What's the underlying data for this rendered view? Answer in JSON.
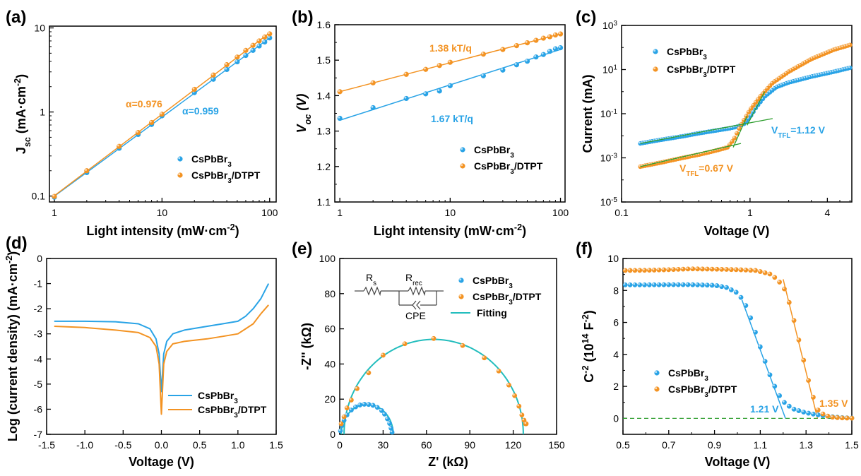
{
  "colors": {
    "blue": "#29A3E6",
    "orange": "#F39323",
    "teal": "#22BDBD",
    "green": "#2E9E2E"
  },
  "panels": {
    "a": {
      "label": "(a)",
      "chart_data": {
        "type": "scatter",
        "x_scale": "log",
        "y_scale": "log",
        "xlabel": "Light intensity (mW·cm⁻²)",
        "ylabel": "Jsc (mA·cm⁻²)",
        "xlim": [
          0.9,
          115
        ],
        "ylim": [
          0.085,
          10.5
        ],
        "x_ticks": [
          "1",
          "10",
          "100"
        ],
        "y_ticks": [
          "0.1",
          "1",
          "10"
        ],
        "legend_position": "bottom-right",
        "annotations": [
          "α=0.976",
          "α=0.959"
        ],
        "series": [
          {
            "name": "CsPbBr3",
            "color": "blue",
            "x": [
              1,
              2,
              4,
              6,
              8,
              10,
              20,
              30,
              40,
              50,
              60,
              70,
              80,
              90,
              100
            ],
            "y": [
              0.097,
              0.19,
              0.37,
              0.54,
              0.71,
              0.9,
              1.7,
              2.45,
              3.2,
              3.95,
              4.7,
              5.4,
              6.1,
              6.8,
              7.6
            ]
          },
          {
            "name": "CsPbBr3/DTPT",
            "color": "orange",
            "x": [
              1,
              2,
              4,
              6,
              8,
              10,
              20,
              30,
              40,
              50,
              60,
              70,
              80,
              90,
              100
            ],
            "y": [
              0.099,
              0.2,
              0.39,
              0.57,
              0.75,
              0.94,
              1.86,
              2.75,
              3.65,
              4.5,
              5.4,
              6.2,
              7.0,
              7.8,
              8.5
            ]
          }
        ]
      }
    },
    "b": {
      "label": "(b)",
      "chart_data": {
        "type": "scatter",
        "x_scale": "log",
        "y_scale": "linear",
        "xlabel": "Light intensity (mW·cm⁻²)",
        "ylabel": "Voc (V)",
        "xlim": [
          0.9,
          110
        ],
        "ylim": [
          1.1,
          1.6
        ],
        "x_ticks": [
          "1",
          "10",
          "100"
        ],
        "y_ticks": [
          "1.1",
          "1.2",
          "1.3",
          "1.4",
          "1.5",
          "1.6"
        ],
        "legend_position": "bottom-right",
        "annotations": [
          "1.38 kT/q",
          "1.67 kT/q"
        ],
        "series": [
          {
            "name": "CsPbBr3",
            "color": "blue",
            "x": [
              1,
              2,
              4,
              6,
              8,
              10,
              20,
              30,
              40,
              50,
              60,
              70,
              80,
              90,
              100
            ],
            "y": [
              1.336,
              1.366,
              1.392,
              1.405,
              1.413,
              1.428,
              1.456,
              1.472,
              1.487,
              1.497,
              1.509,
              1.516,
              1.525,
              1.532,
              1.535
            ]
          },
          {
            "name": "CsPbBr3/DTPT",
            "color": "orange",
            "x": [
              1,
              2,
              4,
              6,
              8,
              10,
              20,
              30,
              40,
              50,
              60,
              70,
              80,
              90,
              100
            ],
            "y": [
              1.411,
              1.436,
              1.46,
              1.474,
              1.485,
              1.494,
              1.517,
              1.53,
              1.541,
              1.549,
              1.556,
              1.562,
              1.566,
              1.571,
              1.574
            ]
          }
        ]
      }
    },
    "c": {
      "label": "(c)",
      "chart_data": {
        "type": "scatter",
        "x_scale": "log",
        "y_scale": "log",
        "xlabel": "Voltage (V)",
        "ylabel": "Current (mA)",
        "xlim": [
          0.1,
          6.2
        ],
        "ylim": [
          1e-05,
          1000
        ],
        "x_ticks": [
          "0.1",
          "1",
          "4"
        ],
        "y_ticks": [
          "10-5",
          "10-3",
          "10-1",
          "101",
          "103"
        ],
        "legend_position": "top-left",
        "annotations": [
          "VTFL=1.12 V",
          "VTFL=0.67 V"
        ],
        "series": [
          {
            "name": "CsPbBr3",
            "color": "blue",
            "x": [
              0.14,
              0.2,
              0.3,
              0.4,
              0.5,
              0.6,
              0.7,
              0.8,
              0.9,
              1.0,
              1.12,
              1.3,
              1.6,
              2.0,
              3.0,
              4.5,
              6.0
            ],
            "y": [
              0.0045,
              0.0065,
              0.0095,
              0.013,
              0.016,
              0.019,
              0.022,
              0.026,
              0.035,
              0.07,
              0.2,
              0.6,
              1.6,
              2.6,
              4.8,
              8.0,
              12.0
            ]
          },
          {
            "name": "CsPbBr3/DTPT",
            "color": "orange",
            "x": [
              0.14,
              0.2,
              0.3,
              0.4,
              0.5,
              0.6,
              0.67,
              0.75,
              0.85,
              1.0,
              1.2,
              1.5,
              2.0,
              3.0,
              4.5,
              6.0
            ],
            "y": [
              0.0004,
              0.0006,
              0.001,
              0.0014,
              0.0019,
              0.0025,
              0.003,
              0.007,
              0.03,
              0.15,
              0.6,
              2.5,
              8.0,
              30,
              80,
              130
            ]
          }
        ]
      }
    },
    "d": {
      "label": "(d)",
      "chart_data": {
        "type": "line",
        "xlabel": "Voltage (V)",
        "ylabel": "Log (current density) (mA·cm⁻²)",
        "xlim": [
          -1.5,
          1.5
        ],
        "ylim": [
          -7,
          0
        ],
        "x_ticks": [
          "-1.5",
          "-1.0",
          "-0.5",
          "0.0",
          "0.5",
          "1.0",
          "1.5"
        ],
        "y_ticks": [
          "-7",
          "-6",
          "-5",
          "-4",
          "-3",
          "-2",
          "-1",
          "0"
        ],
        "legend_position": "bottom-right",
        "series": [
          {
            "name": "CsPbBr3",
            "color": "blue",
            "x": [
              -1.4,
              -1.0,
              -0.6,
              -0.3,
              -0.15,
              -0.07,
              -0.03,
              0.0,
              0.03,
              0.07,
              0.15,
              0.3,
              0.6,
              0.8,
              1.0,
              1.1,
              1.2,
              1.3,
              1.4
            ],
            "y": [
              -2.5,
              -2.5,
              -2.52,
              -2.6,
              -2.8,
              -3.2,
              -3.8,
              -5.3,
              -3.8,
              -3.3,
              -3.0,
              -2.85,
              -2.7,
              -2.6,
              -2.5,
              -2.3,
              -2.0,
              -1.6,
              -1.0
            ]
          },
          {
            "name": "CsPbBr3/DTPT",
            "color": "orange",
            "x": [
              -1.4,
              -1.0,
              -0.6,
              -0.3,
              -0.15,
              -0.07,
              -0.03,
              0.0,
              0.03,
              0.07,
              0.15,
              0.3,
              0.6,
              0.8,
              1.0,
              1.1,
              1.2,
              1.3,
              1.4
            ],
            "y": [
              -2.7,
              -2.75,
              -2.85,
              -2.95,
              -3.15,
              -3.5,
              -4.2,
              -6.2,
              -4.2,
              -3.7,
              -3.4,
              -3.3,
              -3.2,
              -3.1,
              -3.0,
              -2.8,
              -2.6,
              -2.2,
              -1.85
            ]
          }
        ]
      }
    },
    "e": {
      "label": "(e)",
      "chart_data": {
        "type": "scatter",
        "xlabel": "Z' (kΩ)",
        "ylabel": "-Z'' (kΩ)",
        "xlim": [
          0,
          150
        ],
        "ylim": [
          0,
          100
        ],
        "x_ticks": [
          "0",
          "30",
          "60",
          "90",
          "120",
          "150"
        ],
        "y_ticks": [
          "0",
          "20",
          "40",
          "60",
          "80",
          "100"
        ],
        "legend_position": "top-right",
        "legend_entries": [
          "CsPbBr3",
          "CsPbBr3/DTPT",
          "Fitting"
        ],
        "circuit_labels": {
          "rs": "Rs",
          "rrec": "Rrec",
          "cpe": "CPE"
        },
        "fit_arcs": [
          {
            "name": "CsPbBr3",
            "center_x": 19,
            "radius": 18,
            "z_max": 17
          },
          {
            "name": "CsPbBr3/DTPT",
            "center_x": 65,
            "radius": 62,
            "z_max": 54
          }
        ],
        "series": [
          {
            "name": "CsPbBr3",
            "color": "blue",
            "x": [
              0.5,
              1.5,
              3,
              5,
              8,
              11,
              14,
              17,
              20,
              23,
              26,
              29,
              31,
              33,
              34.5,
              35.5,
              36.2
            ],
            "y": [
              2,
              5,
              8,
              11,
              13.8,
              15.6,
              16.7,
              17.1,
              17.0,
              16.5,
              15.3,
              13.5,
              11.5,
              8.8,
              6.2,
              3.5,
              1.2
            ]
          },
          {
            "name": "CsPbBr3/DTPT",
            "color": "orange",
            "x": [
              1,
              3,
              5,
              8,
              12,
              20,
              30,
              45,
              65,
              85,
              100,
              110,
              117,
              121,
              124,
              126,
              127.5,
              128.5,
              129
            ],
            "y": [
              6,
              10,
              15,
              19.5,
              26,
              35,
              45,
              51.5,
              54.5,
              50.5,
              43.5,
              36,
              28,
              22,
              16,
              11,
              8,
              6,
              6
            ]
          }
        ]
      }
    },
    "f": {
      "label": "(f)",
      "chart_data": {
        "type": "scatter",
        "xlabel": "Voltage (V)",
        "ylabel": "C-2 (1014 F-2)",
        "xlim": [
          0.5,
          1.5
        ],
        "ylim": [
          -1,
          10
        ],
        "x_ticks": [
          "0.5",
          "0.7",
          "0.9",
          "1.1",
          "1.3",
          "1.5"
        ],
        "y_ticks": [
          "0",
          "2",
          "4",
          "6",
          "8",
          "10"
        ],
        "legend_position": "bottom-left",
        "annotations": [
          "1.21 V",
          "1.35 V"
        ],
        "linear_fits": [
          {
            "name": "CsPbBr3",
            "x": [
              1.02,
              1.21
            ],
            "y": [
              7.4,
              0
            ]
          },
          {
            "name": "CsPbBr3/DTPT",
            "x": [
              1.2,
              1.35
            ],
            "y": [
              8.7,
              0
            ]
          }
        ],
        "baseline_y": 0,
        "series": [
          {
            "name": "CsPbBr3",
            "color": "blue",
            "x": [
              0.51,
              0.6,
              0.7,
              0.8,
              0.9,
              0.95,
              1.0,
              1.03,
              1.06,
              1.09,
              1.12,
              1.15,
              1.18,
              1.21,
              1.25,
              1.3,
              1.35,
              1.4,
              1.45,
              1.5
            ],
            "y": [
              8.35,
              8.35,
              8.36,
              8.36,
              8.32,
              8.2,
              7.85,
              7.3,
              6.2,
              4.9,
              3.6,
              2.4,
              1.5,
              0.9,
              0.55,
              0.35,
              0.22,
              0.12,
              0.05,
              0.02
            ]
          },
          {
            "name": "CsPbBr3/DTPT",
            "color": "orange",
            "x": [
              0.51,
              0.6,
              0.7,
              0.8,
              0.9,
              1.0,
              1.08,
              1.15,
              1.2,
              1.23,
              1.26,
              1.29,
              1.32,
              1.35,
              1.38,
              1.41,
              1.45,
              1.5
            ],
            "y": [
              9.25,
              9.26,
              9.3,
              9.35,
              9.33,
              9.3,
              9.25,
              9.0,
              8.3,
              7.1,
              5.4,
              3.6,
              1.8,
              0.55,
              0.2,
              0.08,
              0.03,
              0.01
            ]
          }
        ]
      }
    }
  }
}
